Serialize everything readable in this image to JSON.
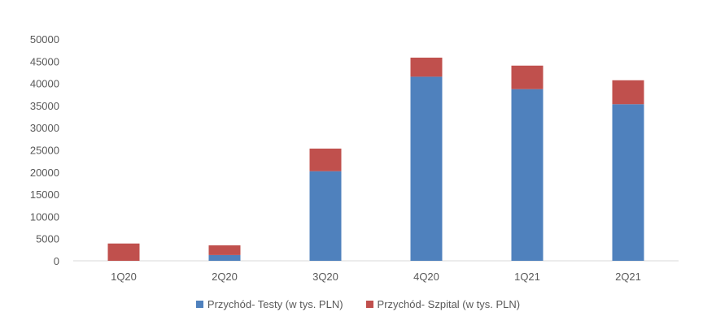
{
  "chart_data": {
    "type": "bar",
    "stacked": true,
    "categories": [
      "1Q20",
      "2Q20",
      "3Q20",
      "4Q20",
      "1Q21",
      "2Q21"
    ],
    "series": [
      {
        "name": "Przychód- Testy (w tys. PLN)",
        "color": "#4f81bd",
        "values": [
          0,
          1300,
          20200,
          41500,
          38700,
          35300
        ]
      },
      {
        "name": "Przychód- Szpital (w tys. PLN)",
        "color": "#c0504d",
        "values": [
          3900,
          2200,
          5100,
          4300,
          5300,
          5400
        ]
      }
    ],
    "ylim": [
      0,
      50000
    ],
    "yticks": [
      "0",
      "5000",
      "10000",
      "15000",
      "20000",
      "25000",
      "30000",
      "35000",
      "40000",
      "45000",
      "50000"
    ],
    "grid": false,
    "legend_position": "bottom"
  }
}
